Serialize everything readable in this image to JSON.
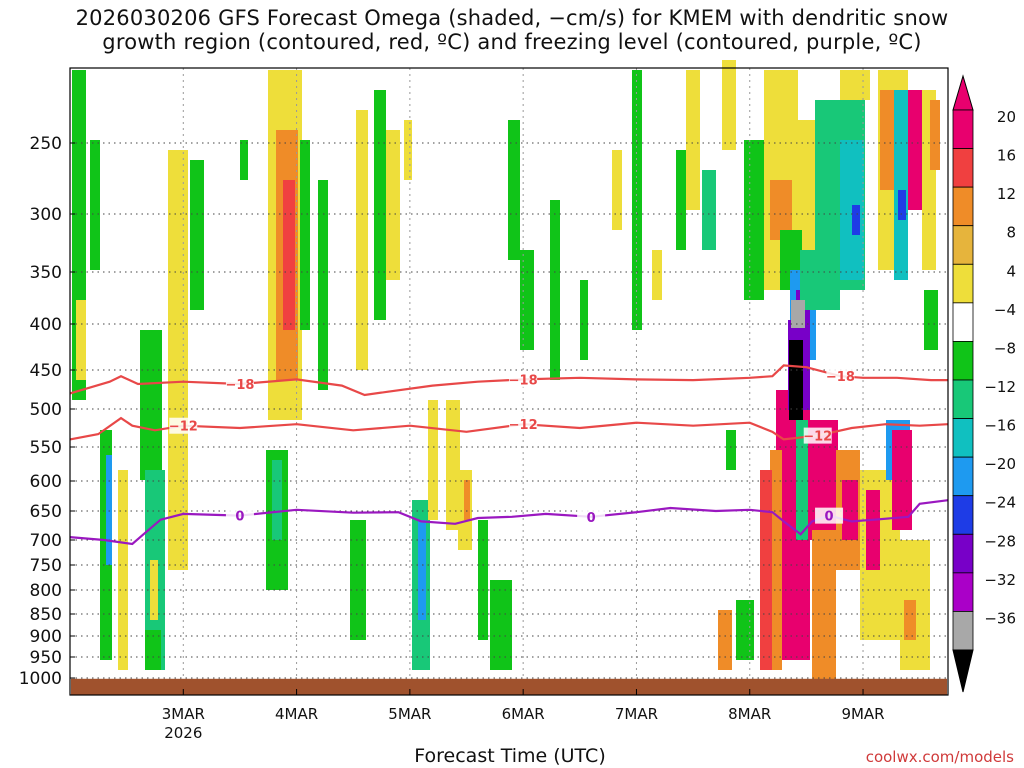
{
  "title_lines": [
    "2026030206 GFS Forecast Omega (shaded, −cm/s) for KMEM with dendritic snow",
    "growth region (contoured, red, ºC) and freezing level (contoured, purple, ºC)"
  ],
  "xaxis_title": "Forecast Time (UTC)",
  "credit": "coolwx.com/models",
  "chart_data": {
    "type": "heatmap",
    "x_ticks": [
      {
        "label": "3MAR",
        "sub": "2026",
        "day": 1.0
      },
      {
        "label": "4MAR",
        "sub": "",
        "day": 2.0
      },
      {
        "label": "5MAR",
        "sub": "",
        "day": 3.0
      },
      {
        "label": "6MAR",
        "sub": "",
        "day": 4.0
      },
      {
        "label": "7MAR",
        "sub": "",
        "day": 5.0
      },
      {
        "label": "8MAR",
        "sub": "",
        "day": 6.0
      },
      {
        "label": "9MAR",
        "sub": "",
        "day": 7.0
      }
    ],
    "xlim": [
      0.0,
      7.75
    ],
    "y_ticks": [
      250,
      300,
      350,
      400,
      450,
      500,
      550,
      600,
      650,
      700,
      750,
      800,
      850,
      900,
      950,
      1000
    ],
    "ylim": [
      200,
      1020
    ],
    "colorbar": {
      "labels": [
        "20",
        "16",
        "12",
        "8",
        "4",
        "−4",
        "−8",
        "−12",
        "−16",
        "−20",
        "−24",
        "−28",
        "−32",
        "−36"
      ],
      "colors": [
        "#e8006e",
        "#f04040",
        "#ef8c28",
        "#e6b43c",
        "#eede3a",
        "#ffffff",
        "#10c418",
        "#18c878",
        "#10c0c0",
        "#1e9af0",
        "#1e3ce6",
        "#7800c8",
        "#aa00c8",
        "#a8a8a8"
      ],
      "top_arrow_color": "#e8006e",
      "bottom_arrow_color": "#000000"
    },
    "contours": [
      {
        "label": "−18",
        "color": "#e84848",
        "x": [
          0.0,
          0.35,
          0.45,
          0.6,
          1.0,
          1.5,
          2.0,
          2.4,
          2.6,
          2.8,
          3.2,
          3.6,
          4.0,
          4.5,
          5.0,
          5.5,
          6.0,
          6.2,
          6.3,
          6.5,
          6.8,
          7.0,
          7.3,
          7.6,
          7.75
        ],
        "y": [
          480,
          465,
          458,
          468,
          465,
          468,
          462,
          470,
          482,
          478,
          470,
          465,
          462,
          460,
          462,
          463,
          460,
          458,
          445,
          447,
          458,
          460,
          460,
          463,
          463
        ]
      },
      {
        "label": "−12",
        "color": "#e84848",
        "x": [
          0.0,
          0.25,
          0.45,
          0.55,
          0.75,
          1.0,
          1.5,
          2.0,
          2.5,
          3.0,
          3.5,
          4.0,
          4.5,
          5.0,
          5.5,
          6.0,
          6.2,
          6.3,
          6.6,
          6.9,
          7.2,
          7.5,
          7.75
        ],
        "y": [
          540,
          533,
          512,
          522,
          528,
          522,
          525,
          520,
          528,
          522,
          530,
          520,
          525,
          518,
          522,
          518,
          530,
          540,
          535,
          525,
          520,
          522,
          520
        ]
      },
      {
        "label": "0",
        "color": "#9a18c0",
        "x": [
          0.0,
          0.3,
          0.55,
          0.65,
          0.8,
          1.0,
          1.5,
          2.0,
          2.5,
          2.9,
          3.1,
          3.4,
          3.6,
          3.9,
          4.2,
          4.6,
          5.0,
          5.3,
          5.7,
          6.0,
          6.2,
          6.3,
          6.45,
          6.55,
          6.7,
          6.9,
          7.1,
          7.4,
          7.5,
          7.75
        ],
        "y": [
          695,
          700,
          708,
          690,
          665,
          655,
          658,
          648,
          653,
          652,
          668,
          672,
          662,
          660,
          655,
          660,
          652,
          645,
          650,
          648,
          652,
          668,
          690,
          668,
          658,
          668,
          665,
          660,
          638,
          632
        ]
      }
    ],
    "ground_color": "#a0522d",
    "grid": true
  }
}
